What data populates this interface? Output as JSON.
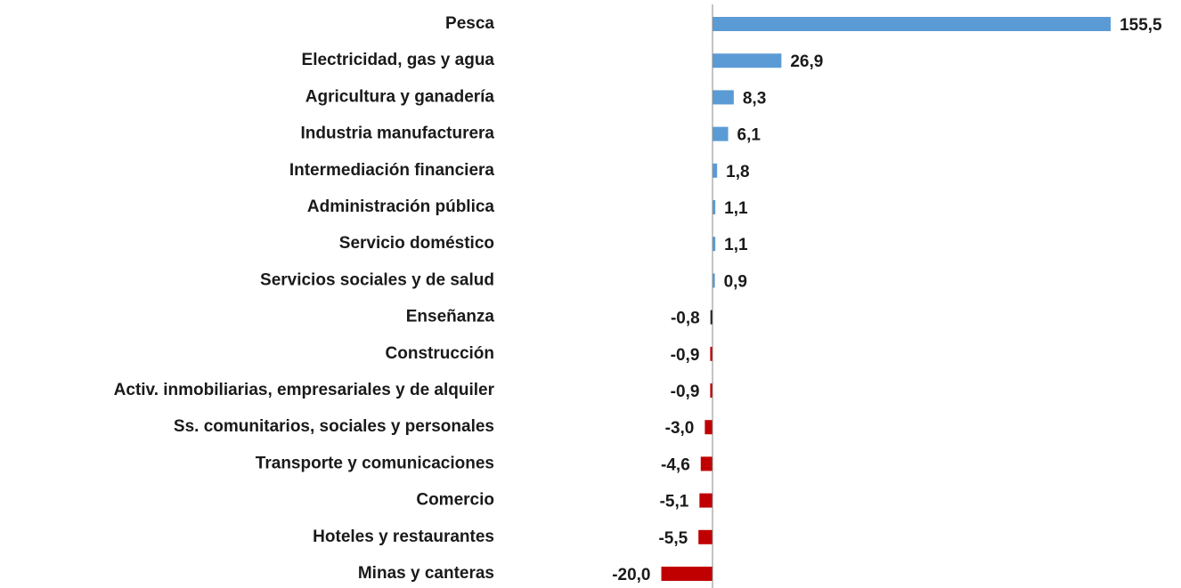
{
  "chart_data": {
    "type": "hbar",
    "categories": [
      "Pesca",
      "Electricidad, gas y agua",
      "Agricultura y ganadería",
      "Industria manufacturera",
      "Intermediación financiera",
      "Administración pública",
      "Servicio doméstico",
      "Servicios sociales y de salud",
      "Enseñanza",
      "Construcción",
      "Activ. inmobiliarias, empresariales y de alquiler",
      "Ss. comunitarios, sociales y personales",
      "Transporte y comunicaciones",
      "Comercio",
      "Hoteles y restaurantes",
      "Minas y canteras"
    ],
    "values": [
      155.5,
      26.9,
      8.3,
      6.1,
      1.8,
      1.1,
      1.1,
      0.9,
      -0.8,
      -0.9,
      -0.9,
      -3.0,
      -4.6,
      -5.1,
      -5.5,
      -20.0
    ],
    "value_labels": [
      "155,5",
      "26,9",
      "8,3",
      "6,1",
      "1,8",
      "1,1",
      "1,1",
      "0,9",
      "-0,8",
      "-0,9",
      "-0,9",
      "-3,0",
      "-4,6",
      "-5,1",
      "-5,5",
      "-20,0"
    ],
    "colors": [
      "#5b9bd5",
      "#5b9bd5",
      "#5b9bd5",
      "#5b9bd5",
      "#5b9bd5",
      "#5b9bd5",
      "#5b9bd5",
      "#5b9bd5",
      "#1a1a1a",
      "#c00000",
      "#c00000",
      "#c00000",
      "#c00000",
      "#c00000",
      "#c00000",
      "#c00000"
    ],
    "xlim": [
      -100,
      160
    ]
  }
}
